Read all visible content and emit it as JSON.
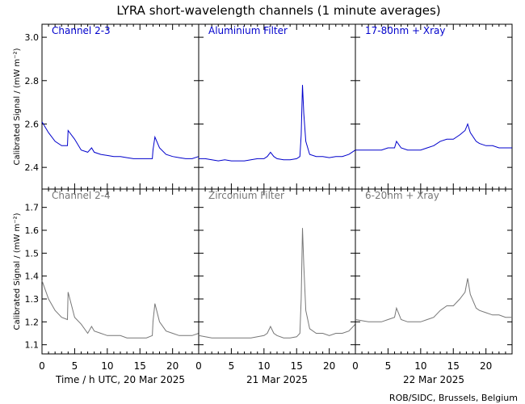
{
  "chart_data": {
    "type": "line",
    "title": "LYRA short-wavelength channels (1 minute averages)",
    "ylabel": "Calibrated Signal / (mW m⁻²)",
    "credit": "ROB/SIDC, Brussels, Belgium",
    "days": [
      {
        "xlabel": "Time / h UTC, 20 Mar 2025",
        "xticks": [
          "0",
          "5",
          "10",
          "15",
          "20"
        ]
      },
      {
        "xlabel": "21 Mar 2025",
        "xticks": [
          "0",
          "5",
          "10",
          "15",
          "20"
        ]
      },
      {
        "xlabel": "22 Mar 2025",
        "xticks": [
          "0",
          "5",
          "10",
          "15",
          "20"
        ]
      }
    ],
    "xlim_hours": [
      0,
      24
    ],
    "rows": [
      {
        "ylim": [
          2.3,
          3.06
        ],
        "yticks": [
          2.4,
          2.6,
          2.8,
          3.0
        ],
        "ytick_labels": [
          "2.4",
          "2.6",
          "2.8",
          "3.0"
        ],
        "color": "#0000cc",
        "panels": [
          {
            "label": "Channel 2-3",
            "x": [
              0,
              1,
              2,
              3,
              3.9,
              4,
              5,
              6,
              7,
              7.6,
              8,
              9,
              10,
              11,
              12,
              13,
              14,
              15,
              16,
              16.9,
              17,
              17.3,
              18,
              19,
              20,
              21,
              22,
              23,
              24
            ],
            "y": [
              2.61,
              2.56,
              2.52,
              2.5,
              2.5,
              2.57,
              2.53,
              2.48,
              2.47,
              2.49,
              2.47,
              2.46,
              2.455,
              2.45,
              2.45,
              2.445,
              2.44,
              2.44,
              2.44,
              2.44,
              2.48,
              2.54,
              2.49,
              2.46,
              2.45,
              2.445,
              2.44,
              2.44,
              2.45
            ]
          },
          {
            "label": "Aluminium Filter",
            "x": [
              0,
              1,
              2,
              3,
              4,
              5,
              6,
              7,
              8,
              9,
              10,
              10.5,
              11,
              11.5,
              12,
              13,
              14,
              15,
              15.5,
              15.7,
              15.9,
              16.1,
              16.4,
              17,
              18,
              19,
              20,
              21,
              22,
              23,
              24
            ],
            "y": [
              2.44,
              2.44,
              2.435,
              2.43,
              2.435,
              2.43,
              2.43,
              2.43,
              2.435,
              2.44,
              2.44,
              2.45,
              2.47,
              2.45,
              2.44,
              2.435,
              2.435,
              2.44,
              2.45,
              2.55,
              2.78,
              2.65,
              2.52,
              2.46,
              2.45,
              2.45,
              2.445,
              2.45,
              2.45,
              2.46,
              2.48
            ]
          },
          {
            "label": "17-80nm + Xray",
            "x": [
              0,
              2,
              4,
              5,
              6,
              6.3,
              7,
              8,
              9,
              10,
              11,
              12,
              13,
              14,
              15,
              16,
              16.8,
              17.2,
              17.6,
              18.5,
              19,
              20,
              21,
              22,
              23,
              24
            ],
            "y": [
              2.48,
              2.48,
              2.48,
              2.49,
              2.49,
              2.52,
              2.49,
              2.48,
              2.48,
              2.48,
              2.49,
              2.5,
              2.52,
              2.53,
              2.53,
              2.55,
              2.57,
              2.6,
              2.56,
              2.52,
              2.51,
              2.5,
              2.5,
              2.49,
              2.49,
              2.49
            ]
          }
        ]
      },
      {
        "ylim": [
          1.06,
          1.78
        ],
        "yticks": [
          1.1,
          1.2,
          1.3,
          1.4,
          1.5,
          1.6,
          1.7
        ],
        "ytick_labels": [
          "1.1",
          "1.2",
          "1.3",
          "1.4",
          "1.5",
          "1.6",
          "1.7"
        ],
        "color": "#777777",
        "panels": [
          {
            "label": "Channel 2-4",
            "x": [
              0,
              1,
              2,
              3,
              3.9,
              4,
              5,
              6,
              7,
              7.6,
              8,
              9,
              10,
              11,
              12,
              13,
              14,
              15,
              16,
              16.9,
              17,
              17.3,
              18,
              19,
              20,
              21,
              22,
              23,
              24
            ],
            "y": [
              1.38,
              1.3,
              1.25,
              1.22,
              1.21,
              1.33,
              1.22,
              1.19,
              1.15,
              1.18,
              1.16,
              1.15,
              1.14,
              1.14,
              1.14,
              1.13,
              1.13,
              1.13,
              1.13,
              1.14,
              1.2,
              1.28,
              1.2,
              1.16,
              1.15,
              1.14,
              1.14,
              1.14,
              1.15
            ]
          },
          {
            "label": "Zirconium Filter",
            "x": [
              0,
              1,
              2,
              3,
              4,
              5,
              6,
              7,
              8,
              9,
              10,
              10.5,
              11,
              11.5,
              12,
              13,
              14,
              15,
              15.5,
              15.7,
              15.9,
              16.1,
              16.4,
              17,
              18,
              19,
              20,
              21,
              22,
              23,
              24
            ],
            "y": [
              1.14,
              1.135,
              1.13,
              1.13,
              1.13,
              1.13,
              1.13,
              1.13,
              1.13,
              1.135,
              1.14,
              1.15,
              1.18,
              1.15,
              1.14,
              1.13,
              1.13,
              1.135,
              1.15,
              1.3,
              1.61,
              1.45,
              1.25,
              1.17,
              1.15,
              1.15,
              1.14,
              1.15,
              1.15,
              1.16,
              1.19
            ]
          },
          {
            "label": "6-20nm + Xray",
            "x": [
              0,
              2,
              4,
              5,
              6,
              6.3,
              7,
              8,
              9,
              10,
              11,
              12,
              13,
              14,
              15,
              16,
              16.8,
              17.2,
              17.6,
              18.5,
              19,
              20,
              21,
              22,
              23,
              24
            ],
            "y": [
              1.21,
              1.2,
              1.2,
              1.21,
              1.22,
              1.26,
              1.21,
              1.2,
              1.2,
              1.2,
              1.21,
              1.22,
              1.25,
              1.27,
              1.27,
              1.3,
              1.33,
              1.39,
              1.32,
              1.26,
              1.25,
              1.24,
              1.23,
              1.23,
              1.22,
              1.22
            ]
          }
        ]
      }
    ]
  }
}
